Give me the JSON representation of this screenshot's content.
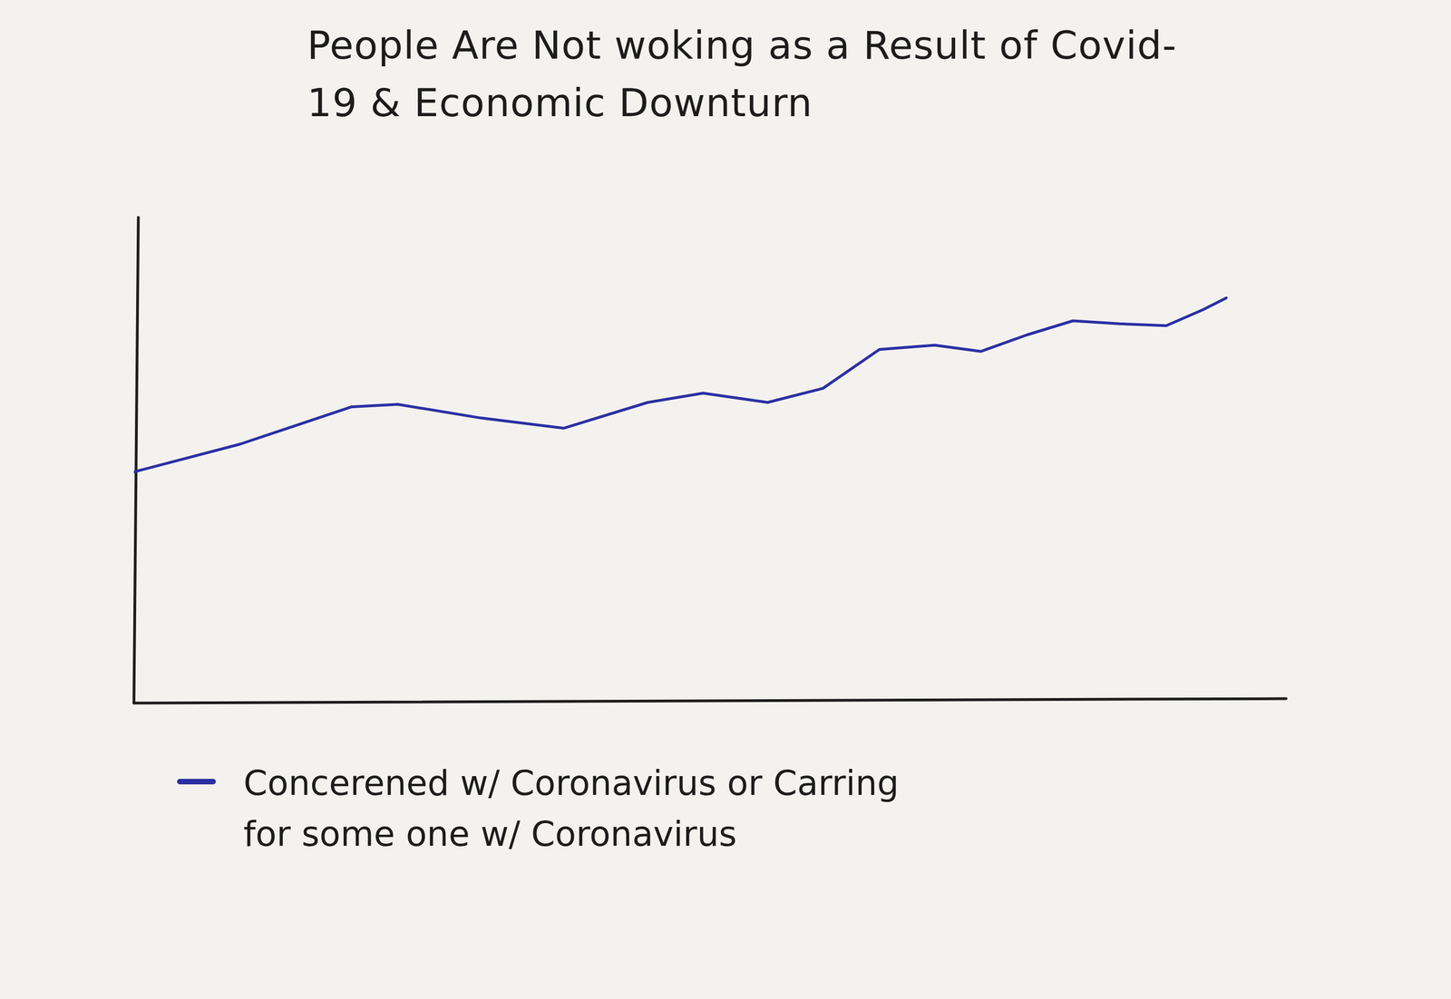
{
  "chart_data": {
    "type": "line",
    "title": "People Are Not woking as a Result of Covid-19 & Economic Downturn",
    "x": [
      0,
      9.2,
      18.9,
      22.9,
      30.1,
      37.3,
      44.6,
      49.4,
      55.0,
      59.8,
      64.7,
      69.5,
      73.5,
      77.5,
      81.5,
      85.5,
      89.6,
      92.8,
      94.8
    ],
    "series": [
      {
        "name": "Concerened w/ Coronavirus or Carring for some one w/ Coronavirus",
        "color": "#2b2fa3",
        "values": [
          47.6,
          53.3,
          61.0,
          61.5,
          58.7,
          56.6,
          61.9,
          63.8,
          61.9,
          64.8,
          72.8,
          73.7,
          72.4,
          75.8,
          78.7,
          78.1,
          77.7,
          81.0,
          83.4
        ]
      }
    ],
    "xlim": [
      0,
      100
    ],
    "ylim": [
      0,
      100
    ],
    "tick_labels": false,
    "grid": false,
    "legend": "bottom"
  }
}
